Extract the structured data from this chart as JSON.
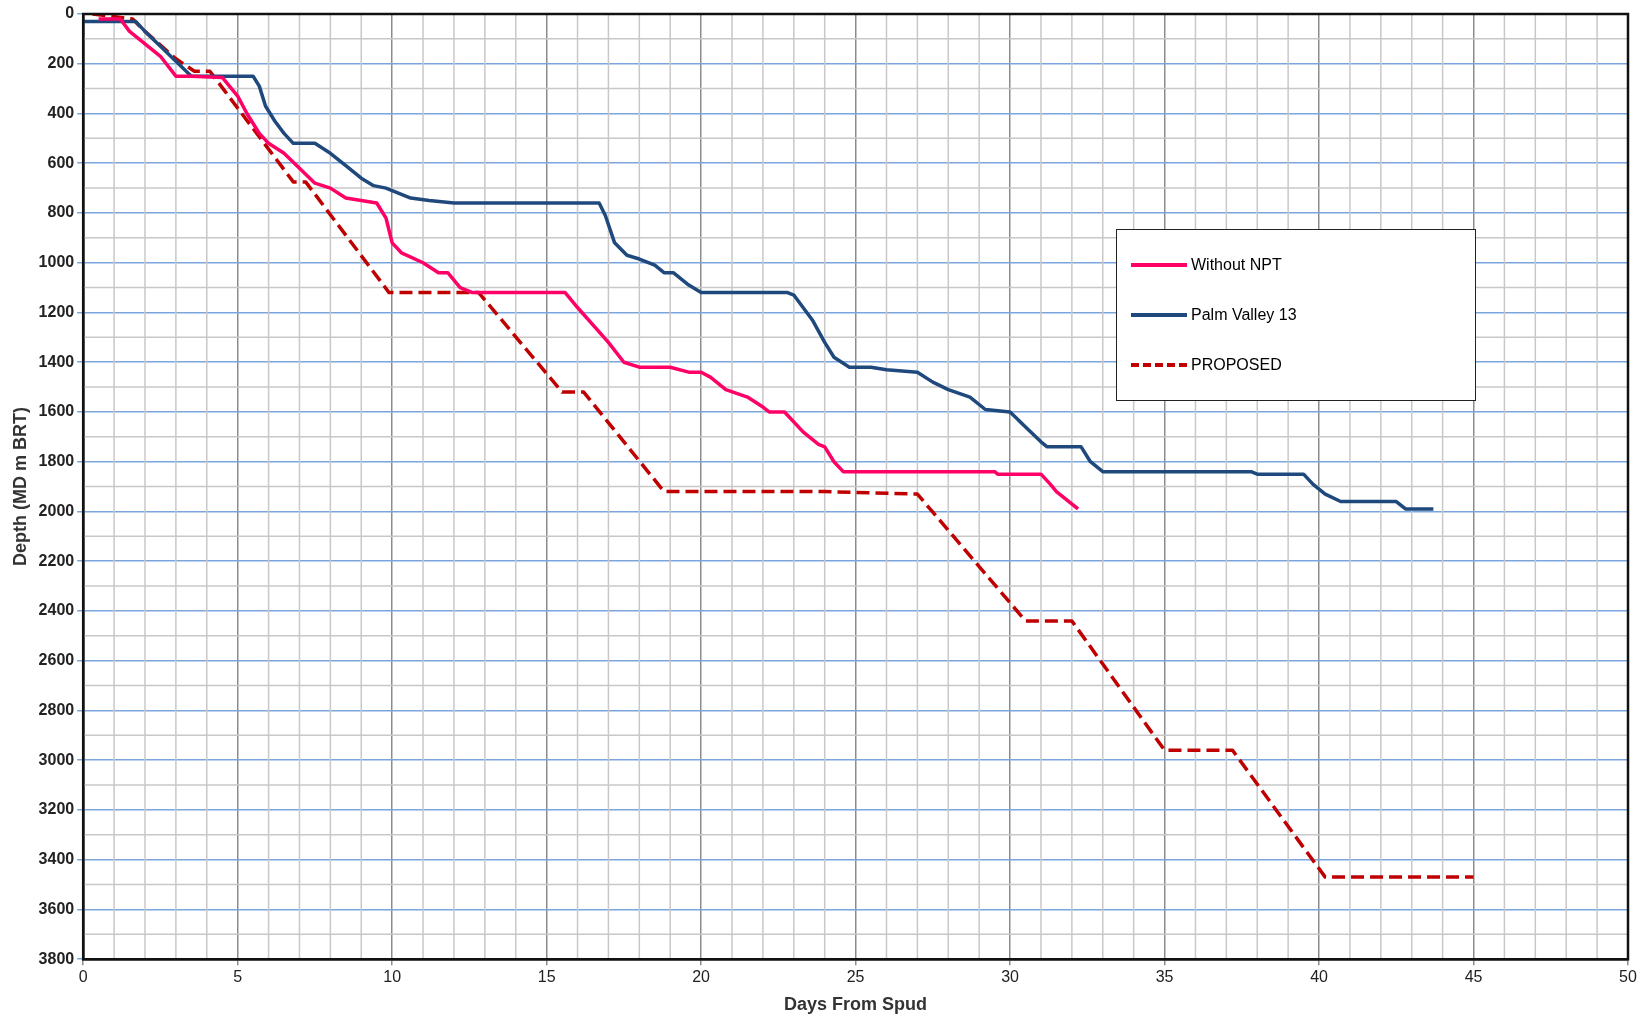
{
  "chart_data": {
    "type": "line",
    "xlabel": "Days From Spud",
    "ylabel": "Depth (MD m BRT)",
    "xlim": [
      0,
      50
    ],
    "xticks": [
      0,
      5,
      10,
      15,
      20,
      25,
      30,
      35,
      40,
      45,
      50
    ],
    "ylim": [
      3800,
      0
    ],
    "yticks": [
      0,
      200,
      400,
      600,
      800,
      1000,
      1200,
      1400,
      1600,
      1800,
      2000,
      2200,
      2400,
      2600,
      2800,
      3000,
      3200,
      3400,
      3600,
      3800
    ],
    "grid": true,
    "legend": "top right",
    "marker": "none",
    "series": [
      {
        "name": "Without NPT",
        "color": "#ff0066",
        "line_style": "solid",
        "x": [
          0.5,
          1.2,
          1.5,
          2.5,
          3,
          3.5,
          4.5,
          5,
          5.3,
          5.7,
          6,
          6.5,
          7,
          7.5,
          8,
          8.5,
          9,
          9.5,
          9.8,
          10,
          10.3,
          11,
          11.5,
          11.8,
          12.2,
          12.6,
          15.6,
          16,
          17,
          17.5,
          18,
          19,
          19.6,
          20,
          20.3,
          20.8,
          21.5,
          22,
          22.2,
          22.7,
          23.3,
          23.8,
          24,
          24.3,
          24.6,
          29.5,
          29.6,
          31,
          31.3,
          31.5,
          32.2
        ],
        "values": [
          20,
          20,
          70,
          170,
          250,
          250,
          255,
          330,
          400,
          480,
          520,
          560,
          620,
          680,
          700,
          740,
          750,
          760,
          820,
          920,
          960,
          1000,
          1040,
          1040,
          1100,
          1120,
          1120,
          1180,
          1320,
          1400,
          1420,
          1420,
          1440,
          1440,
          1460,
          1510,
          1540,
          1580,
          1600,
          1600,
          1680,
          1730,
          1740,
          1800,
          1840,
          1840,
          1850,
          1850,
          1890,
          1920,
          1990
        ]
      },
      {
        "name": "Palm Valley 13",
        "color": "#1f497d",
        "line_style": "solid",
        "x": [
          0,
          1.7,
          2,
          2.5,
          3,
          3.5,
          5.5,
          5.7,
          5.9,
          6.2,
          6.5,
          6.8,
          7.5,
          8,
          8.5,
          9,
          9.4,
          9.8,
          10,
          10.6,
          11.2,
          12,
          16.7,
          16.9,
          17.2,
          17.6,
          18,
          18.5,
          18.8,
          19.1,
          19.6,
          20,
          22.8,
          23,
          23.6,
          24,
          24.3,
          24.8,
          25.5,
          26,
          27,
          27.5,
          28,
          28.7,
          29.2,
          30,
          30.5,
          31,
          31.2,
          32.3,
          32.6,
          33,
          37.8,
          38,
          39.5,
          39.8,
          40.2,
          40.7,
          42.5,
          42.8,
          43.7
        ],
        "values": [
          30,
          30,
          70,
          130,
          190,
          250,
          250,
          290,
          370,
          430,
          480,
          520,
          520,
          560,
          610,
          660,
          690,
          700,
          710,
          740,
          750,
          760,
          760,
          810,
          920,
          970,
          985,
          1010,
          1040,
          1040,
          1090,
          1120,
          1120,
          1130,
          1230,
          1320,
          1380,
          1420,
          1420,
          1430,
          1440,
          1480,
          1510,
          1540,
          1590,
          1600,
          1660,
          1720,
          1740,
          1740,
          1800,
          1840,
          1840,
          1850,
          1850,
          1890,
          1930,
          1960,
          1960,
          1990,
          1990
        ]
      },
      {
        "name": "PROPOSED",
        "color": "#c00000",
        "line_style": "dashed",
        "x": [
          0.3,
          1.6,
          2,
          3,
          3.6,
          4.1,
          6.8,
          7.2,
          9.9,
          12.8,
          15.5,
          16.2,
          18.8,
          24,
          27,
          30.5,
          32,
          35,
          37.2,
          40.2,
          45
        ],
        "values": [
          0,
          20,
          70,
          180,
          230,
          230,
          675,
          675,
          1120,
          1120,
          1520,
          1520,
          1920,
          1920,
          1930,
          2440,
          2440,
          2960,
          2960,
          3470,
          3470
        ]
      }
    ]
  }
}
